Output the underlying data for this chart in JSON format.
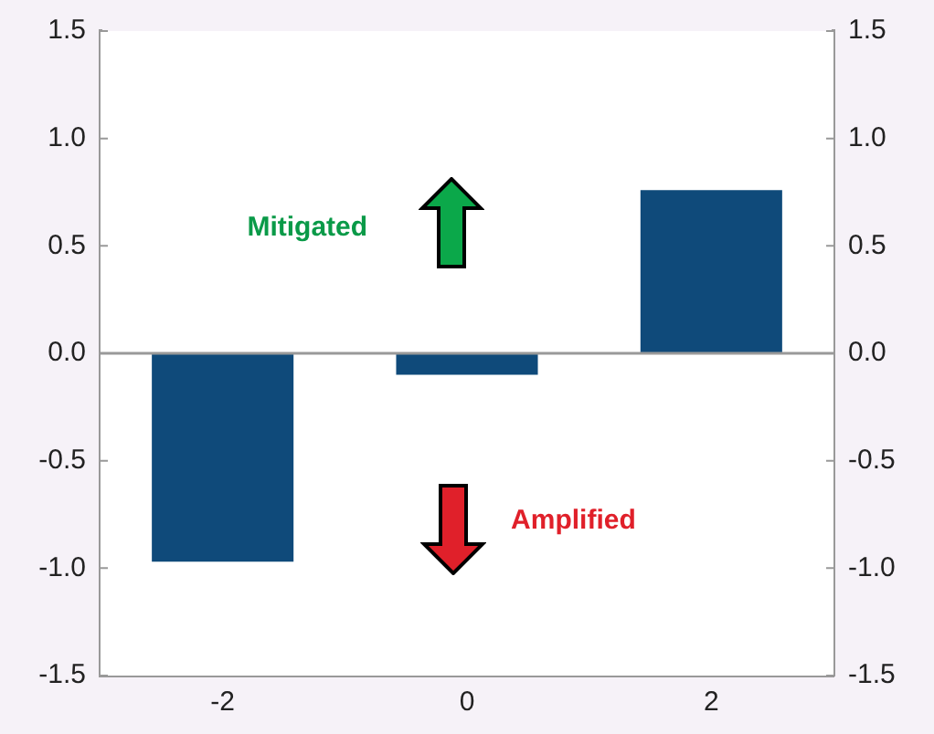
{
  "chart_data": {
    "type": "bar",
    "categories": [
      "-2",
      "0",
      "2"
    ],
    "values": [
      -0.97,
      -0.1,
      0.76
    ],
    "color": "#0f4a7a",
    "ylim": [
      -1.5,
      1.5
    ],
    "yticks": [
      -1.5,
      {
        "value": -1,
        "label": "-1.0"
      },
      -0.5,
      {
        "value": 0,
        "label": "0.0"
      },
      0.5,
      {
        "value": 1,
        "label": "1.0"
      },
      1.5
    ],
    "y2lim": [
      -1.5,
      1.5
    ],
    "y2ticks": [
      -1.5,
      {
        "value": -1,
        "label": "-1.0"
      },
      -0.5,
      {
        "value": 0,
        "label": "0.0"
      },
      0.5,
      {
        "value": 1,
        "label": "1.0"
      },
      1.5
    ],
    "legend": false,
    "annotations": [
      "Mitigated",
      "Amplified"
    ]
  }
}
